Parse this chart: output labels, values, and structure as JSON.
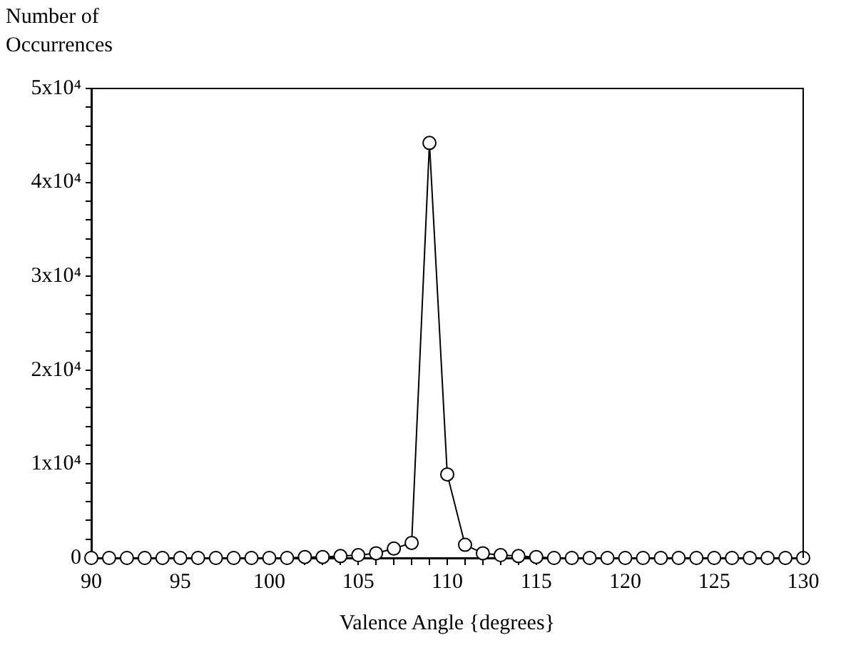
{
  "chart_data": {
    "type": "line",
    "xlabel": "Valence Angle {degrees}",
    "ylabel": "Number of Occurrences",
    "x": [
      90,
      91,
      92,
      93,
      94,
      95,
      96,
      97,
      98,
      99,
      100,
      101,
      102,
      103,
      104,
      105,
      106,
      107,
      108,
      109,
      110,
      111,
      112,
      113,
      114,
      115,
      116,
      117,
      118,
      119,
      120,
      121,
      122,
      123,
      124,
      125,
      126,
      127,
      128,
      129,
      130
    ],
    "series": [
      {
        "color": "#000000",
        "values": [
          0,
          0,
          0,
          0,
          0,
          0,
          0,
          0,
          0,
          0,
          0,
          0,
          100,
          100,
          200,
          300,
          500,
          1000,
          1600,
          44200,
          8900,
          1400,
          500,
          300,
          200,
          100,
          0,
          0,
          0,
          0,
          0,
          0,
          0,
          0,
          0,
          0,
          0,
          0,
          0,
          0,
          0
        ]
      }
    ],
    "xlim": [
      90,
      130
    ],
    "ylim": [
      0,
      50000
    ],
    "xticks": [
      90,
      {
        "value": 91,
        "label": null
      },
      {
        "value": 92,
        "label": null
      },
      {
        "value": 93,
        "label": null
      },
      {
        "value": 94,
        "label": null
      },
      95,
      {
        "value": 96,
        "label": null
      },
      {
        "value": 97,
        "label": null
      },
      {
        "value": 98,
        "label": null
      },
      {
        "value": 99,
        "label": null
      },
      100,
      {
        "value": 101,
        "label": null
      },
      {
        "value": 102,
        "label": null
      },
      {
        "value": 103,
        "label": null
      },
      {
        "value": 104,
        "label": null
      },
      105,
      {
        "value": 106,
        "label": null
      },
      {
        "value": 107,
        "label": null
      },
      {
        "value": 108,
        "label": null
      },
      {
        "value": 109,
        "label": null
      },
      110,
      {
        "value": 111,
        "label": null
      },
      {
        "value": 112,
        "label": null
      },
      {
        "value": 113,
        "label": null
      },
      {
        "value": 114,
        "label": null
      },
      115,
      {
        "value": 116,
        "label": null
      },
      {
        "value": 117,
        "label": null
      },
      {
        "value": 118,
        "label": null
      },
      {
        "value": 119,
        "label": null
      },
      120,
      {
        "value": 121,
        "label": null
      },
      {
        "value": 122,
        "label": null
      },
      {
        "value": 123,
        "label": null
      },
      {
        "value": 124,
        "label": null
      },
      125,
      {
        "value": 126,
        "label": null
      },
      {
        "value": 127,
        "label": null
      },
      {
        "value": 128,
        "label": null
      },
      {
        "value": 129,
        "label": null
      },
      130
    ],
    "yticks": [
      0,
      {
        "value": 2000,
        "label": null
      },
      {
        "value": 4000,
        "label": null
      },
      {
        "value": 6000,
        "label": null
      },
      {
        "value": 8000,
        "label": null
      },
      {
        "value": 10000,
        "label": "1x10⁴"
      },
      {
        "value": 12000,
        "label": null
      },
      {
        "value": 14000,
        "label": null
      },
      {
        "value": 16000,
        "label": null
      },
      {
        "value": 18000,
        "label": null
      },
      {
        "value": 20000,
        "label": "2x10⁴"
      },
      {
        "value": 22000,
        "label": null
      },
      {
        "value": 24000,
        "label": null
      },
      {
        "value": 26000,
        "label": null
      },
      {
        "value": 28000,
        "label": null
      },
      {
        "value": 30000,
        "label": "3x10⁴"
      },
      {
        "value": 32000,
        "label": null
      },
      {
        "value": 34000,
        "label": null
      },
      {
        "value": 36000,
        "label": null
      },
      {
        "value": 38000,
        "label": null
      },
      {
        "value": 40000,
        "label": "4x10⁴"
      },
      {
        "value": 42000,
        "label": null
      },
      {
        "value": 44000,
        "label": null
      },
      {
        "value": 46000,
        "label": null
      },
      {
        "value": 48000,
        "label": null
      },
      {
        "value": 50000,
        "label": "5x10⁴"
      }
    ],
    "grid": false,
    "legend": false,
    "marker": "circle",
    "line_style": "solid"
  }
}
